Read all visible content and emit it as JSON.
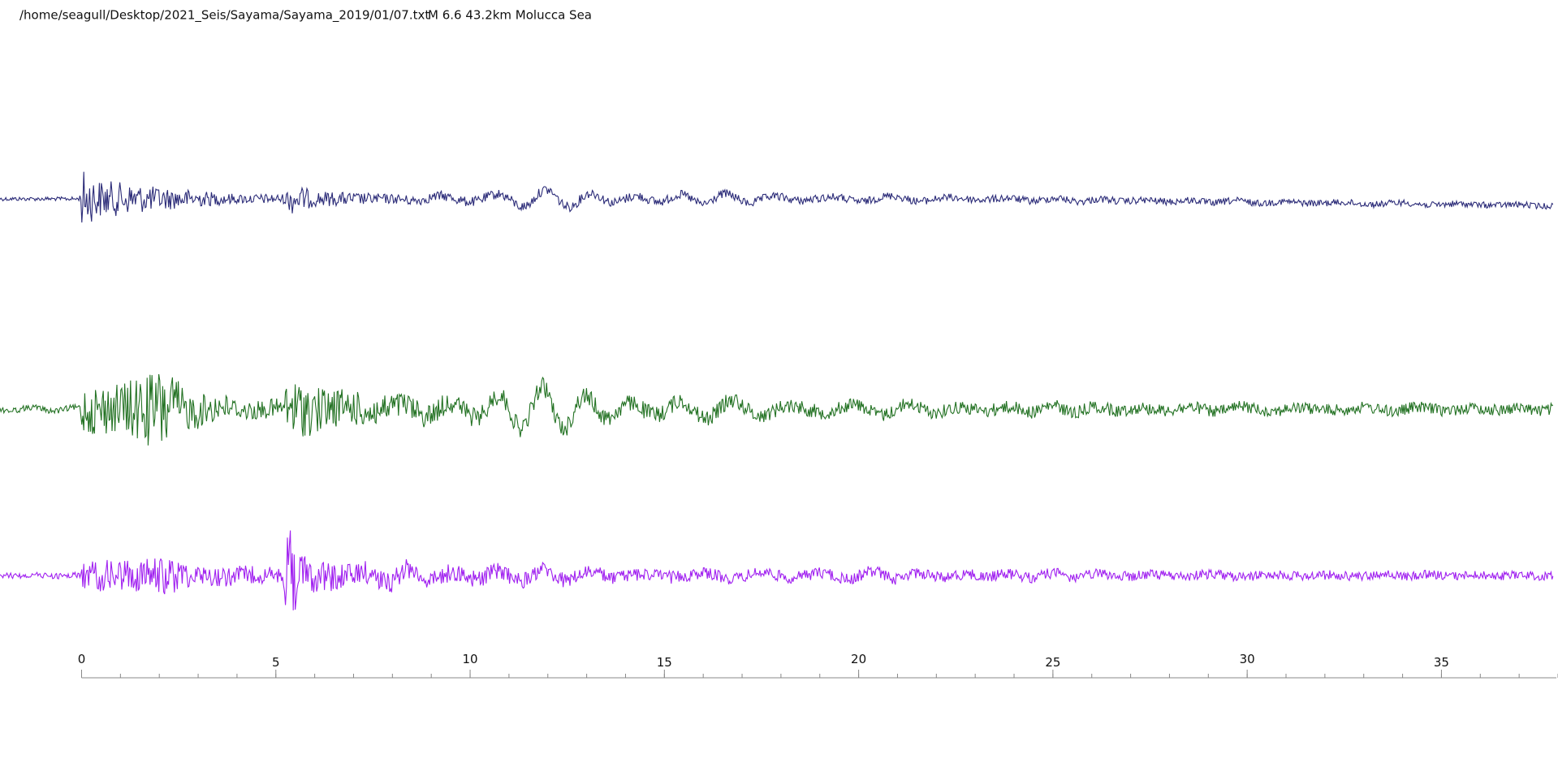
{
  "header": {
    "file": "/home/seagull/Desktop/2021_Seis/Sayama/Sayama_2019/01/07.txt",
    "event": "M 6.6 43.2km Molucca Sea"
  },
  "time_axis": {
    "xlim": [
      -2.1,
      38.0
    ],
    "xticks": [
      0,
      5,
      10,
      15,
      20,
      25,
      30,
      35
    ]
  }
}
